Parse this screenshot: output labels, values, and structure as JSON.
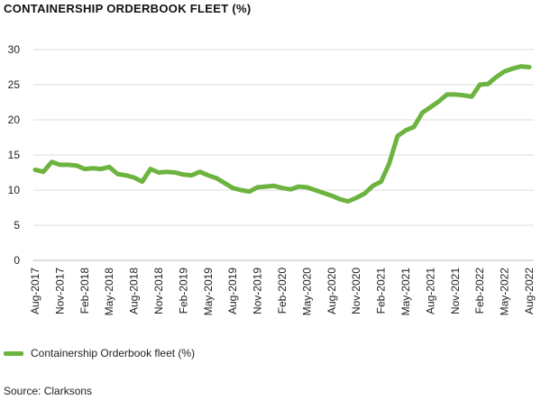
{
  "chart_data": {
    "type": "line",
    "title": "CONTAINERSHIP ORDERBOOK FLEET (%)",
    "xlabel": "",
    "ylabel": "",
    "ylim": [
      0,
      30
    ],
    "yticks": [
      0,
      5,
      10,
      15,
      20,
      25,
      30
    ],
    "x_tick_labels": [
      "Aug-2017",
      "Nov-2017",
      "Feb-2018",
      "May-2018",
      "Aug-2018",
      "Nov-2018",
      "Feb-2019",
      "May-2019",
      "Aug-2019",
      "Nov-2019",
      "Feb-2020",
      "May-2020",
      "Aug-2020",
      "Nov-2020",
      "Feb-2021",
      "May-2021",
      "Aug-2021",
      "Nov-2021",
      "Feb-2022",
      "May-2022",
      "Aug-2022"
    ],
    "grid": true,
    "legend": "bottom-left",
    "series": [
      {
        "name": "Containership Orderbook fleet (%)",
        "color": "#6db33f",
        "values": [
          12.9,
          12.6,
          14.0,
          13.6,
          13.6,
          13.5,
          13.0,
          13.1,
          13.0,
          13.3,
          12.3,
          12.1,
          11.8,
          11.2,
          13.0,
          12.5,
          12.6,
          12.5,
          12.2,
          12.1,
          12.6,
          12.1,
          11.7,
          11.0,
          10.3,
          10.0,
          9.8,
          10.4,
          10.5,
          10.6,
          10.3,
          10.1,
          10.5,
          10.4,
          10.0,
          9.6,
          9.2,
          8.7,
          8.4,
          8.9,
          9.5,
          10.6,
          11.2,
          13.8,
          17.7,
          18.5,
          19.0,
          21.0,
          21.8,
          22.6,
          23.6,
          23.6,
          23.5,
          23.3,
          25.0,
          25.1,
          26.1,
          26.9,
          27.3,
          27.6,
          27.5
        ]
      }
    ]
  },
  "source": "Source: Clarksons"
}
